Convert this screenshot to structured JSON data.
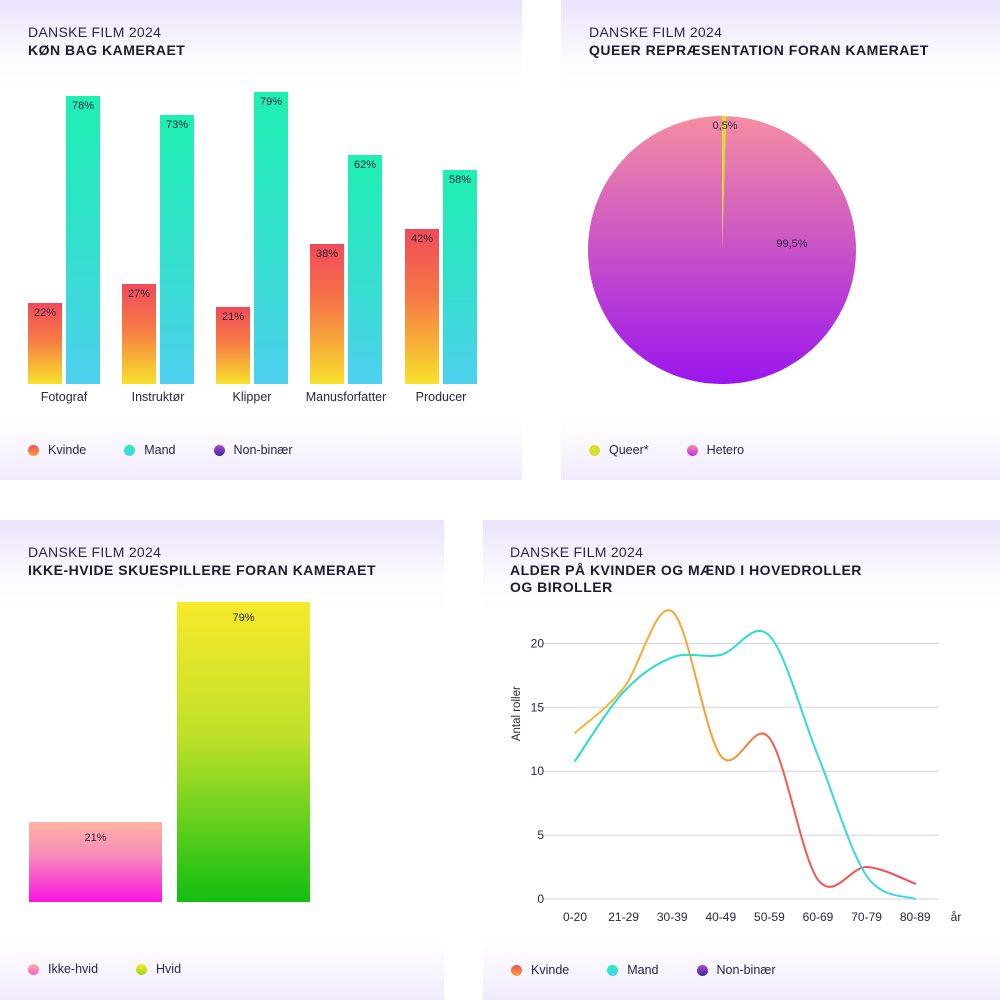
{
  "colors": {
    "kvinde": [
      "#f04a5a",
      "#f7e12b"
    ],
    "mand": [
      "#1ef0b2",
      "#4dd0ee"
    ],
    "nonbinaer": [
      "#b147d8",
      "#3a2a9a"
    ],
    "queer": "#d6e02c",
    "hetero": [
      "#f58ea2",
      "#9b16ee"
    ],
    "ikke_hvid": [
      "#ffb3a3",
      "#f716e0"
    ],
    "hvid": [
      "#f7ea2a",
      "#11bf12"
    ]
  },
  "panels": {
    "gender_behind": {
      "kicker": "DANSKE FILM 2024",
      "title": "KØN BAG KAMERAET",
      "legend": [
        {
          "label": "Kvinde",
          "icon": "kvinde-dot"
        },
        {
          "label": "Mand",
          "icon": "mand-dot"
        },
        {
          "label": "Non-binær",
          "icon": "nonbinaer-dot"
        }
      ]
    },
    "queer": {
      "kicker": "DANSKE FILM 2024",
      "title": "QUEER REPRÆSENTATION FORAN KAMERAET",
      "legend": [
        {
          "label": "Queer*",
          "icon": "queer-dot"
        },
        {
          "label": "Hetero",
          "icon": "hetero-dot"
        }
      ]
    },
    "non_white": {
      "kicker": "DANSKE FILM 2024",
      "title": "IKKE-HVIDE SKUESPILLERE FORAN KAMERAET",
      "legend": [
        {
          "label": "Ikke-hvid",
          "icon": "ikke-hvid-dot"
        },
        {
          "label": "Hvid",
          "icon": "hvid-dot"
        }
      ]
    },
    "age": {
      "kicker": "DANSKE FILM 2024",
      "title_line1": "ALDER PÅ KVINDER OG MÆND I HOVEDROLLER",
      "title_line2": "OG BIROLLER",
      "legend": [
        {
          "label": "Kvinde",
          "icon": "kvinde-dot"
        },
        {
          "label": "Mand",
          "icon": "mand-dot"
        },
        {
          "label": "Non-binær",
          "icon": "nonbinaer-dot"
        }
      ]
    }
  },
  "chart_data": [
    {
      "type": "bar",
      "title": "KØN BAG KAMERAET",
      "categories": [
        "Fotograf",
        "Instruktør",
        "Klipper",
        "Manusforfatter",
        "Producer"
      ],
      "series": [
        {
          "name": "Kvinde",
          "values": [
            22,
            27,
            21,
            38,
            42
          ],
          "labels": [
            "22%",
            "27%",
            "21%",
            "38%",
            "42%"
          ]
        },
        {
          "name": "Mand",
          "values": [
            78,
            73,
            79,
            62,
            58
          ],
          "labels": [
            "78%",
            "73%",
            "79%",
            "62%",
            "58%"
          ]
        }
      ],
      "legend": [
        "Kvinde",
        "Mand",
        "Non-binær"
      ],
      "ylim": [
        0,
        80
      ],
      "grid": false
    },
    {
      "type": "pie",
      "title": "QUEER REPRÆSENTATION FORAN KAMERAET",
      "slices": [
        {
          "name": "Queer*",
          "value": 0.5,
          "label": "0,5%"
        },
        {
          "name": "Hetero",
          "value": 99.5,
          "label": "99,5%"
        }
      ]
    },
    {
      "type": "bar",
      "title": "IKKE-HVIDE SKUESPILLERE FORAN KAMERAET",
      "categories": [
        "Ikke-hvid",
        "Hvid"
      ],
      "values": [
        21,
        79
      ],
      "labels": [
        "21%",
        "79%"
      ],
      "ylim": [
        0,
        80
      ],
      "grid": false
    },
    {
      "type": "line",
      "title": "ALDER PÅ KVINDER OG MÆND I HOVEDROLLER OG BIROLLER",
      "xlabel": "år",
      "ylabel": "Antal roller",
      "x": [
        "0-20",
        "21-29",
        "30-39",
        "40-49",
        "50-59",
        "60-69",
        "70-79",
        "80-89"
      ],
      "yticks": [
        "0",
        "5",
        "10",
        "15",
        "20"
      ],
      "ylim": [
        0,
        22
      ],
      "grid": true,
      "series": [
        {
          "name": "Kvinde",
          "values": [
            13,
            16.5,
            22.5,
            11.2,
            12.6,
            1.5,
            2.5,
            1.2
          ]
        },
        {
          "name": "Mand",
          "values": [
            10.8,
            16.2,
            18.9,
            19.1,
            20.6,
            11.2,
            1.8,
            0
          ]
        }
      ],
      "legend": [
        "Kvinde",
        "Mand",
        "Non-binær"
      ]
    }
  ]
}
